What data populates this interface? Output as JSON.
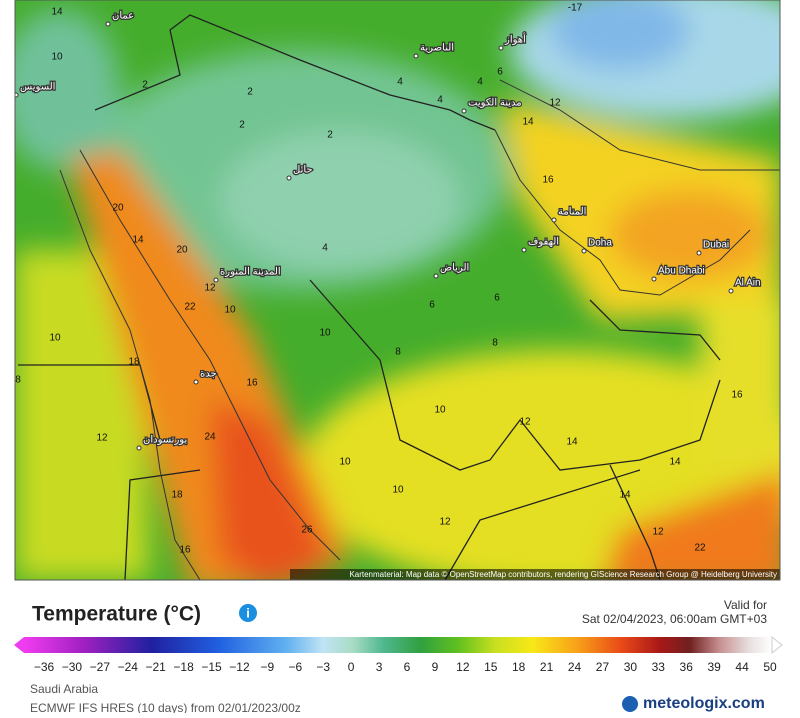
{
  "map": {
    "attribution": "Kartenmaterial: Map data © OpenStreetMap contributors, rendering GIScience Research Group @ Heidelberg University",
    "cities": [
      "Doha",
      "Dubai",
      "Abu Dhabi",
      "Al Ain",
      "الرياض",
      "جدة",
      "المدينة المنورة",
      "مدينة الكويت",
      "المنامة",
      "الهفوف",
      "حائل",
      "بورتسودان",
      "أهواز",
      "الناصرية",
      "السويس",
      "عمان"
    ],
    "temperatures": [
      14,
      10,
      2,
      2,
      4,
      2,
      2,
      4,
      4,
      6,
      12,
      14,
      16,
      20,
      22,
      12,
      10,
      16,
      24,
      18,
      16,
      26,
      10,
      12,
      10,
      8,
      6,
      8,
      10,
      12,
      14,
      14,
      16,
      14,
      12,
      22,
      18,
      20,
      4,
      6,
      -17,
      10,
      12,
      14,
      8,
      10
    ]
  },
  "legend": {
    "title": "Temperature (°C)",
    "valid_label": "Valid for",
    "valid_time": "Sat 02/04/2023, 06:00am GMT+03",
    "ticks": [
      "−36",
      "−30",
      "−27",
      "−24",
      "−21",
      "−18",
      "−15",
      "−12",
      "−9",
      "−6",
      "−3",
      "0",
      "3",
      "6",
      "9",
      "12",
      "15",
      "18",
      "21",
      "24",
      "27",
      "30",
      "33",
      "36",
      "39",
      "44",
      "50"
    ],
    "region": "Saudi Arabia",
    "model": "ECMWF IFS HRES (10 days) from 02/01/2023/00z",
    "brand": "meteologix.com"
  }
}
